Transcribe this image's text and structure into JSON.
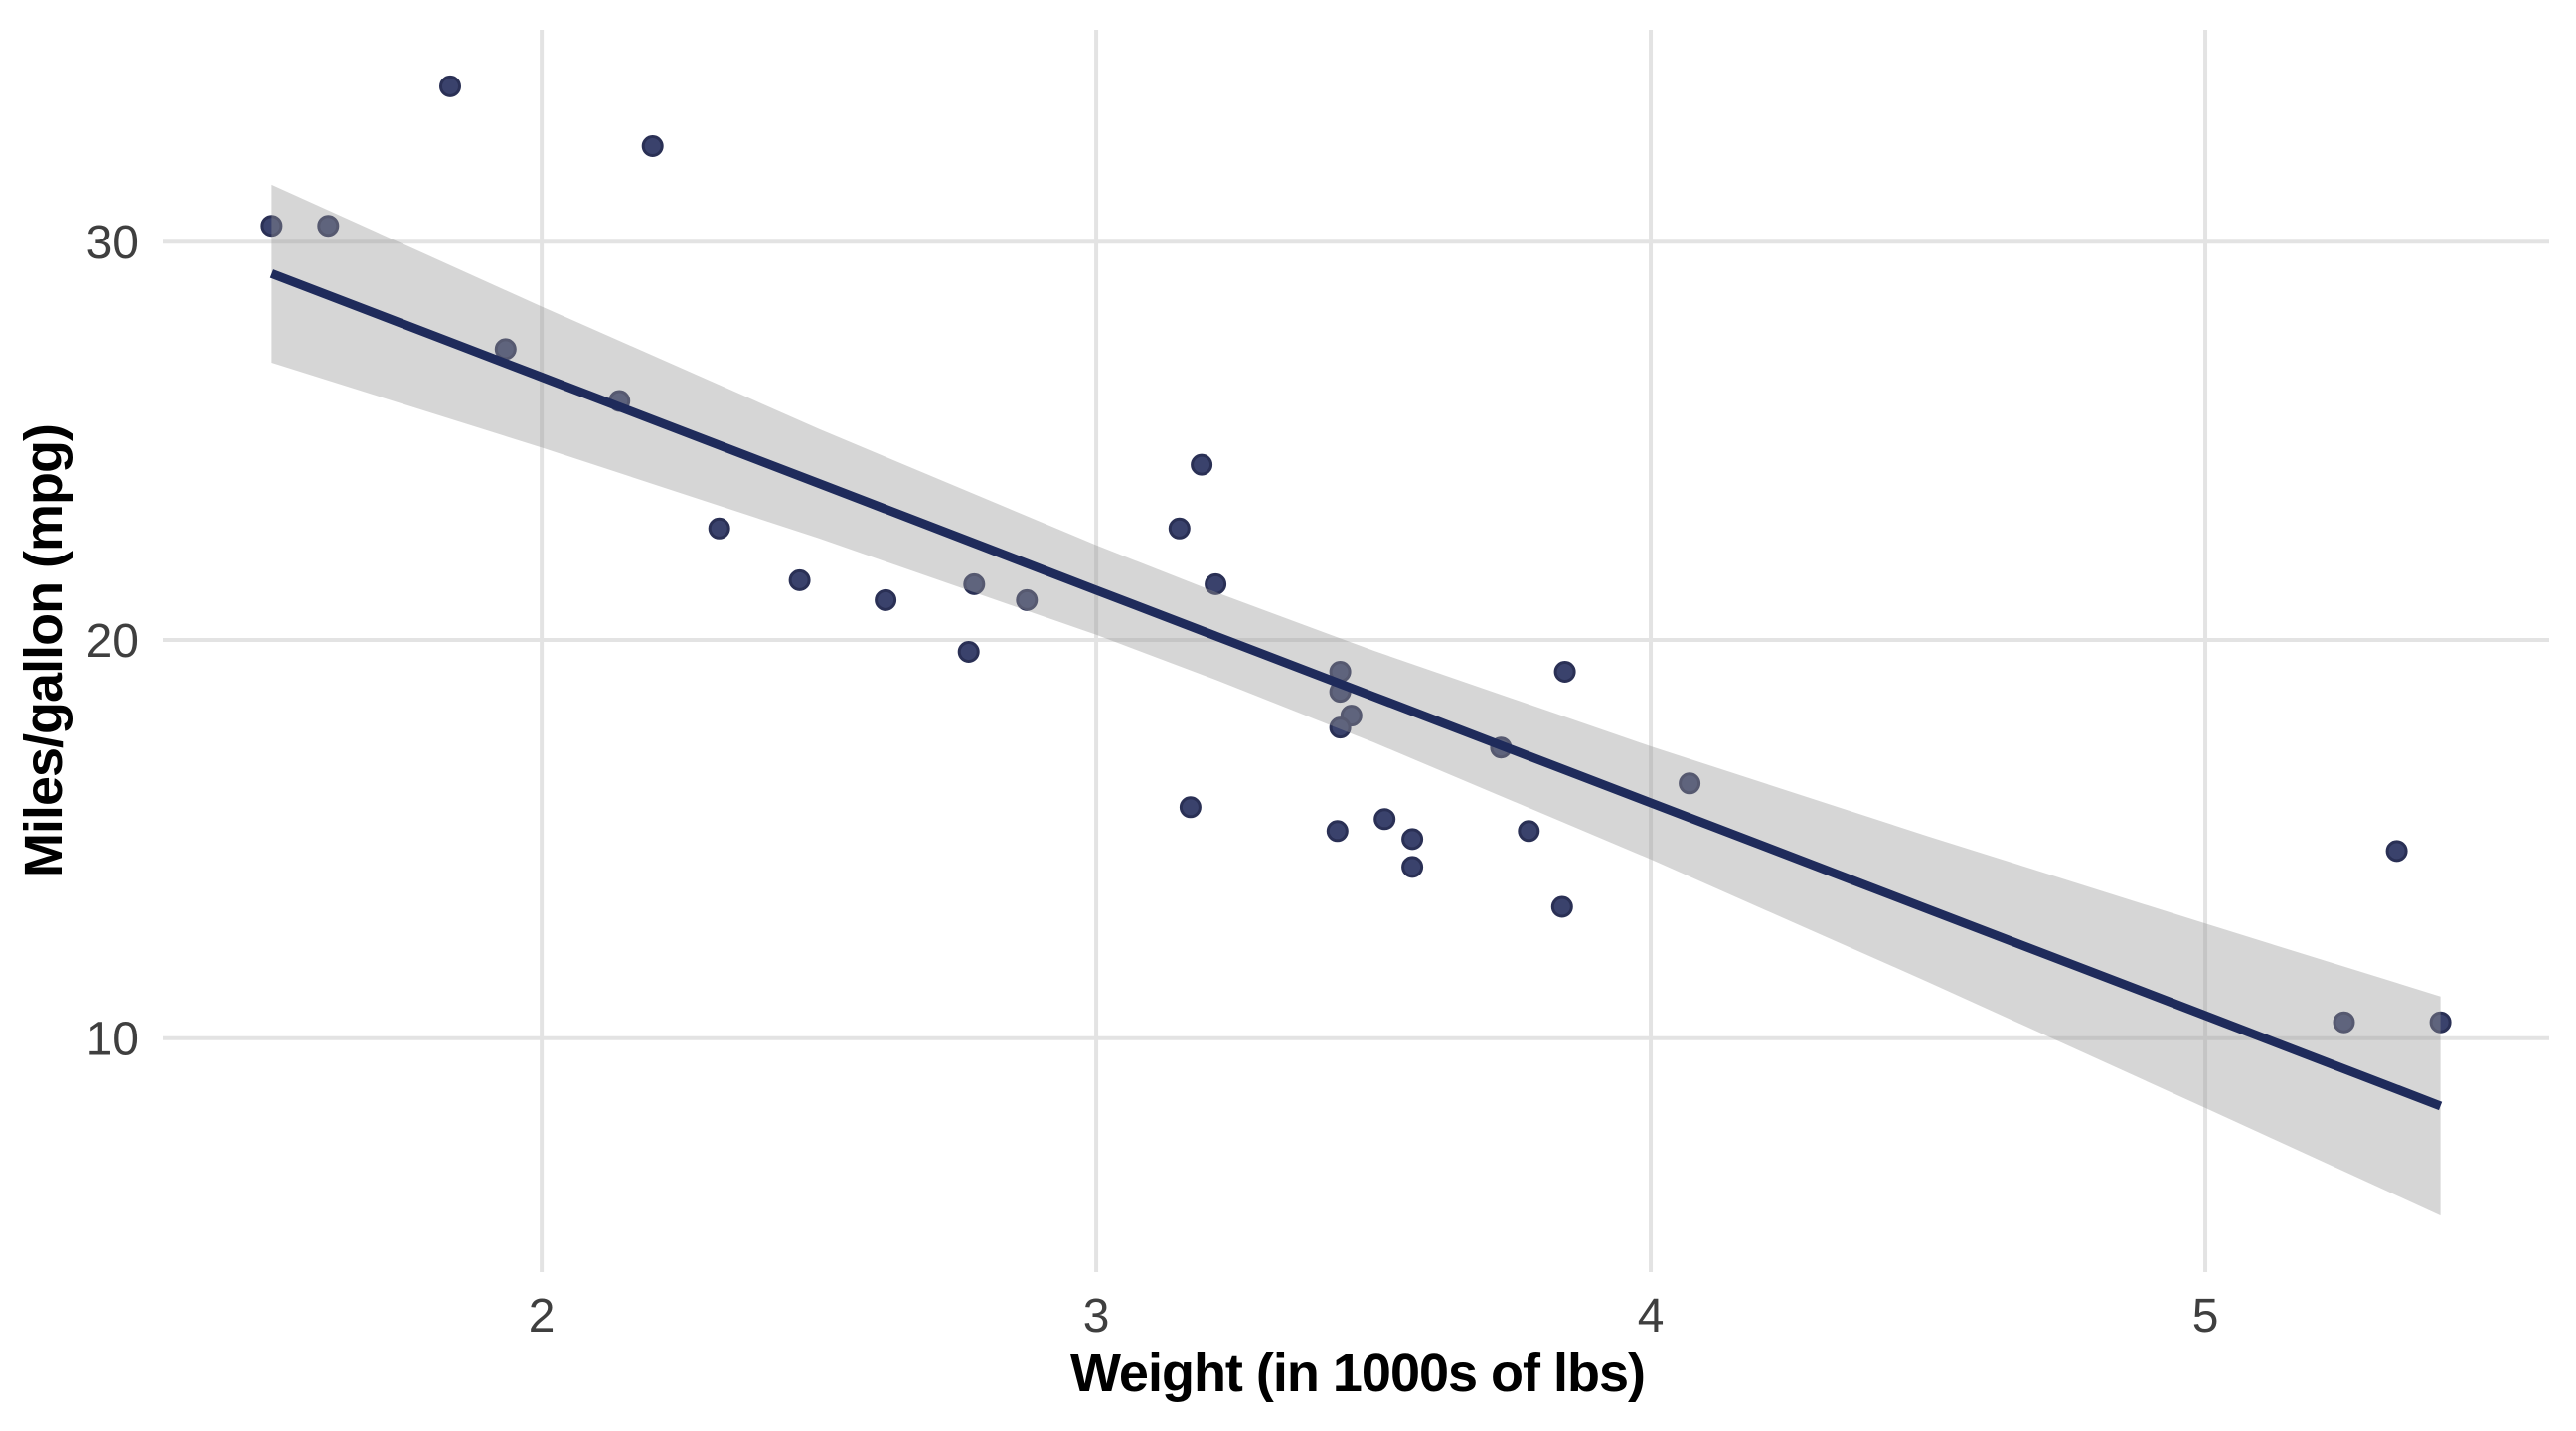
{
  "chart_data": {
    "type": "scatter",
    "title": "",
    "xlabel": "Weight (in 1000s of lbs)",
    "ylabel": "Miles/gallon (mpg)",
    "x_ticks": [
      "2",
      "3",
      "4",
      "5"
    ],
    "x_tick_values": [
      2,
      3,
      4,
      5
    ],
    "y_ticks": [
      "10",
      "20",
      "30"
    ],
    "y_tick_values": [
      10,
      20,
      30
    ],
    "x_domain": [
      1.317,
      5.62
    ],
    "y_domain": [
      4.13,
      35.32
    ],
    "grid": "major-only",
    "legend": "none",
    "points_xy_wt_mpg": [
      [
        2.62,
        21.0
      ],
      [
        2.875,
        21.0
      ],
      [
        2.32,
        22.8
      ],
      [
        3.215,
        21.4
      ],
      [
        3.44,
        18.7
      ],
      [
        3.46,
        18.1
      ],
      [
        3.57,
        14.3
      ],
      [
        3.19,
        24.4
      ],
      [
        3.15,
        22.8
      ],
      [
        3.44,
        19.2
      ],
      [
        3.44,
        17.8
      ],
      [
        4.07,
        16.4
      ],
      [
        3.73,
        17.3
      ],
      [
        3.78,
        15.2
      ],
      [
        5.25,
        10.4
      ],
      [
        5.424,
        10.4
      ],
      [
        5.345,
        14.7
      ],
      [
        2.2,
        32.4
      ],
      [
        1.615,
        30.4
      ],
      [
        1.835,
        33.9
      ],
      [
        2.465,
        21.5
      ],
      [
        3.52,
        15.5
      ],
      [
        3.435,
        15.2
      ],
      [
        3.84,
        13.3
      ],
      [
        3.845,
        19.2
      ],
      [
        1.935,
        27.3
      ],
      [
        2.14,
        26.0
      ],
      [
        1.513,
        30.4
      ],
      [
        3.17,
        15.8
      ],
      [
        2.77,
        19.7
      ],
      [
        3.57,
        15.0
      ],
      [
        2.78,
        21.4
      ]
    ],
    "regression": {
      "method": "linear",
      "x": [
        1.513,
        2.0,
        2.5,
        3.0,
        3.2172,
        3.5,
        4.0,
        4.5,
        5.0,
        5.424
      ],
      "fit": [
        29.2,
        26.6,
        23.93,
        21.25,
        20.09,
        18.58,
        15.91,
        13.24,
        10.57,
        8.3
      ],
      "ci_upper": [
        31.43,
        28.37,
        25.3,
        22.38,
        21.19,
        19.73,
        17.33,
        15.07,
        12.88,
        11.05
      ],
      "ci_lower": [
        26.96,
        24.83,
        22.55,
        20.13,
        18.99,
        17.43,
        14.49,
        11.41,
        8.25,
        5.55
      ]
    },
    "colors": {
      "background": "#FFFFFF",
      "gridline": "#E3E3E3",
      "point_fill": "#3A426C",
      "point_stroke": "#2A3055",
      "regression_line": "#1F2B5B",
      "ribbon": "#999999",
      "ribbon_opacity": "0.4",
      "tick_text": "#3F3F3F",
      "axis_title_text": "#000000"
    }
  }
}
